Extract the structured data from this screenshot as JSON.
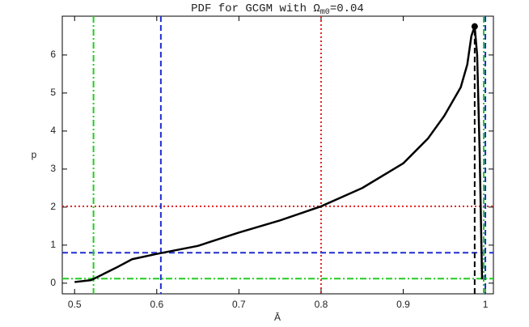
{
  "chart_data": {
    "type": "line",
    "title": [
      "PDF for GCGM with Ω",
      "m0",
      "=0.04"
    ],
    "x_label": "Ā",
    "y_label": "p",
    "x": [
      0.5,
      0.52,
      0.55,
      0.57,
      0.6,
      0.65,
      0.7,
      0.75,
      0.8,
      0.85,
      0.9,
      0.93,
      0.95,
      0.97,
      0.978,
      0.983,
      0.987,
      0.99,
      0.993,
      0.996
    ],
    "series": [
      {
        "name": "p",
        "color": "#000000",
        "values": [
          0.03,
          0.08,
          0.4,
          0.63,
          0.77,
          0.98,
          1.33,
          1.65,
          2.02,
          2.5,
          3.15,
          3.8,
          4.4,
          5.15,
          5.75,
          6.5,
          6.75,
          6.0,
          3.5,
          0.1
        ]
      }
    ],
    "marker": {
      "x": 0.987,
      "y": 6.75,
      "color": "#000000"
    },
    "reference_lines": [
      {
        "axis": "x",
        "value": 0.8,
        "color": "#e02020",
        "style": "dotted"
      },
      {
        "axis": "y",
        "value": 2.02,
        "color": "#e02020",
        "style": "dotted"
      },
      {
        "axis": "x",
        "value": 0.605,
        "color": "#1f2fd0",
        "style": "dashed"
      },
      {
        "axis": "y",
        "value": 0.8,
        "color": "#1f2fd0",
        "style": "dashed"
      },
      {
        "axis": "x",
        "value": 1.0,
        "color": "#1f2fd0",
        "style": "dashed"
      },
      {
        "axis": "x",
        "value": 0.523,
        "color": "#22cc22",
        "style": "dashdot"
      },
      {
        "axis": "x",
        "value": 0.998,
        "color": "#22cc22",
        "style": "dashdot"
      },
      {
        "axis": "y",
        "value": 0.12,
        "color": "#22cc22",
        "style": "dashdot"
      }
    ],
    "xlim": [
      0.485,
      1.0098
    ],
    "ylim": [
      -0.28,
      7.02
    ],
    "xticks": [
      0.5,
      0.6,
      0.7,
      0.8,
      0.9,
      1
    ],
    "yticks": [
      0,
      1,
      2,
      3,
      4,
      5,
      6
    ],
    "grid": false
  }
}
